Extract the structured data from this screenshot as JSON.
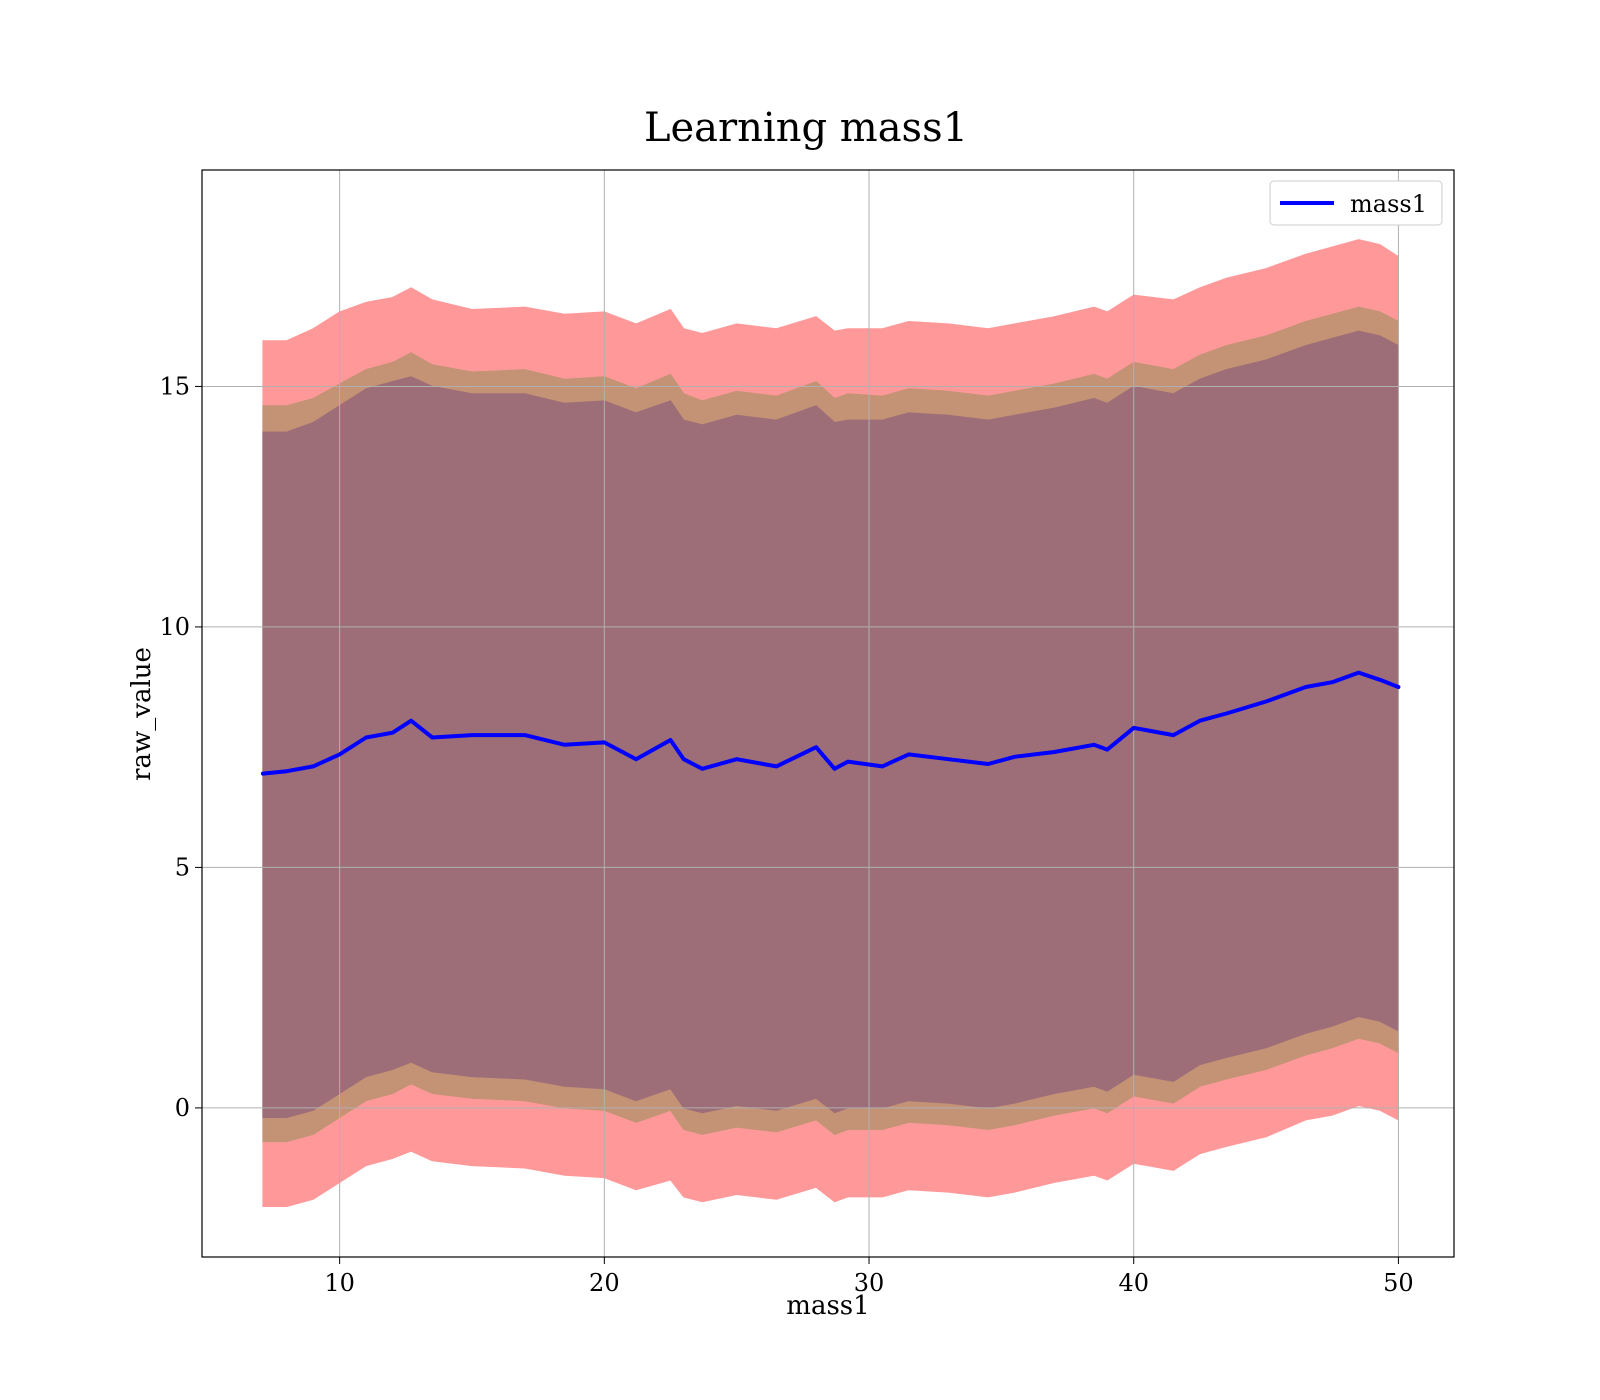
{
  "colors": {
    "line": "#0000ff",
    "band_outer": "#ff9999",
    "band_mid": "#c49275",
    "band_inner": "#9e6e78",
    "grid": "#b0b0b0",
    "axes": "#000000"
  },
  "chart_data": {
    "type": "line",
    "title": "Learning mass1",
    "xlabel": "mass1",
    "ylabel": "raw_value",
    "xlim": [
      4.8,
      52.1
    ],
    "ylim": [
      -3.1,
      19.5
    ],
    "xticks": [
      10,
      20,
      30,
      40,
      50
    ],
    "yticks": [
      0,
      5,
      10,
      15
    ],
    "grid": true,
    "legend": {
      "location": "upper right",
      "entries": [
        "mass1"
      ]
    },
    "series": [
      {
        "name": "mass1",
        "color": "#0000ff",
        "x": [
          7.1,
          8.0,
          9.0,
          10.0,
          11.0,
          12.0,
          12.7,
          13.5,
          15.0,
          17.0,
          18.5,
          20.0,
          21.2,
          22.5,
          23.0,
          23.7,
          25.0,
          26.5,
          28.0,
          28.7,
          29.2,
          30.5,
          31.5,
          33.0,
          34.5,
          35.5,
          37.0,
          38.5,
          39.0,
          40.0,
          41.5,
          42.5,
          43.5,
          45.0,
          46.5,
          47.5,
          48.5,
          49.3,
          50.0
        ],
        "y": [
          6.95,
          7.0,
          7.1,
          7.35,
          7.7,
          7.8,
          8.05,
          7.7,
          7.75,
          7.75,
          7.55,
          7.6,
          7.25,
          7.65,
          7.25,
          7.05,
          7.25,
          7.1,
          7.5,
          7.05,
          7.2,
          7.1,
          7.35,
          7.25,
          7.15,
          7.3,
          7.4,
          7.55,
          7.45,
          7.9,
          7.75,
          8.05,
          8.2,
          8.45,
          8.75,
          8.85,
          9.05,
          8.9,
          8.75
        ]
      }
    ],
    "bands": [
      {
        "label": "outer",
        "color": "#ff9999",
        "upper": [
          15.95,
          15.95,
          16.2,
          16.55,
          16.75,
          16.85,
          17.05,
          16.8,
          16.6,
          16.65,
          16.5,
          16.55,
          16.3,
          16.6,
          16.2,
          16.1,
          16.3,
          16.2,
          16.45,
          16.15,
          16.2,
          16.2,
          16.35,
          16.3,
          16.2,
          16.3,
          16.45,
          16.65,
          16.55,
          16.9,
          16.8,
          17.05,
          17.25,
          17.45,
          17.75,
          17.9,
          18.05,
          17.95,
          17.7
        ],
        "lower": [
          -2.05,
          -2.05,
          -1.9,
          -1.55,
          -1.2,
          -1.05,
          -0.9,
          -1.1,
          -1.2,
          -1.25,
          -1.4,
          -1.45,
          -1.7,
          -1.5,
          -1.85,
          -1.95,
          -1.8,
          -1.9,
          -1.65,
          -1.95,
          -1.85,
          -1.85,
          -1.7,
          -1.75,
          -1.85,
          -1.75,
          -1.55,
          -1.4,
          -1.5,
          -1.15,
          -1.3,
          -0.95,
          -0.8,
          -0.6,
          -0.25,
          -0.15,
          0.05,
          -0.05,
          -0.25
        ]
      },
      {
        "label": "middle",
        "color": "#c49275",
        "upper": [
          14.6,
          14.6,
          14.75,
          15.05,
          15.35,
          15.5,
          15.7,
          15.45,
          15.3,
          15.35,
          15.15,
          15.2,
          14.95,
          15.25,
          14.85,
          14.7,
          14.9,
          14.8,
          15.1,
          14.75,
          14.85,
          14.8,
          14.95,
          14.9,
          14.8,
          14.9,
          15.05,
          15.25,
          15.15,
          15.5,
          15.35,
          15.65,
          15.85,
          16.05,
          16.35,
          16.5,
          16.65,
          16.55,
          16.35
        ],
        "lower": [
          -0.7,
          -0.7,
          -0.55,
          -0.2,
          0.15,
          0.3,
          0.5,
          0.3,
          0.2,
          0.15,
          0.0,
          -0.05,
          -0.3,
          -0.05,
          -0.45,
          -0.55,
          -0.4,
          -0.5,
          -0.25,
          -0.55,
          -0.45,
          -0.45,
          -0.3,
          -0.35,
          -0.45,
          -0.35,
          -0.15,
          0.0,
          -0.1,
          0.25,
          0.1,
          0.45,
          0.6,
          0.8,
          1.1,
          1.25,
          1.45,
          1.35,
          1.15
        ]
      },
      {
        "label": "inner",
        "color": "#9e6e78",
        "upper": [
          14.05,
          14.05,
          14.25,
          14.6,
          14.95,
          15.1,
          15.2,
          15.0,
          14.85,
          14.85,
          14.65,
          14.7,
          14.45,
          14.7,
          14.3,
          14.2,
          14.4,
          14.3,
          14.6,
          14.25,
          14.3,
          14.3,
          14.45,
          14.4,
          14.3,
          14.4,
          14.55,
          14.75,
          14.65,
          15.0,
          14.85,
          15.15,
          15.35,
          15.55,
          15.85,
          16.0,
          16.15,
          16.05,
          15.85
        ],
        "lower": [
          -0.2,
          -0.2,
          -0.05,
          0.3,
          0.65,
          0.8,
          0.95,
          0.75,
          0.65,
          0.6,
          0.45,
          0.4,
          0.15,
          0.4,
          0.0,
          -0.1,
          0.05,
          -0.05,
          0.2,
          -0.1,
          0.0,
          0.0,
          0.15,
          0.1,
          0.0,
          0.1,
          0.3,
          0.45,
          0.35,
          0.7,
          0.55,
          0.9,
          1.05,
          1.25,
          1.55,
          1.7,
          1.9,
          1.8,
          1.6
        ]
      }
    ]
  }
}
